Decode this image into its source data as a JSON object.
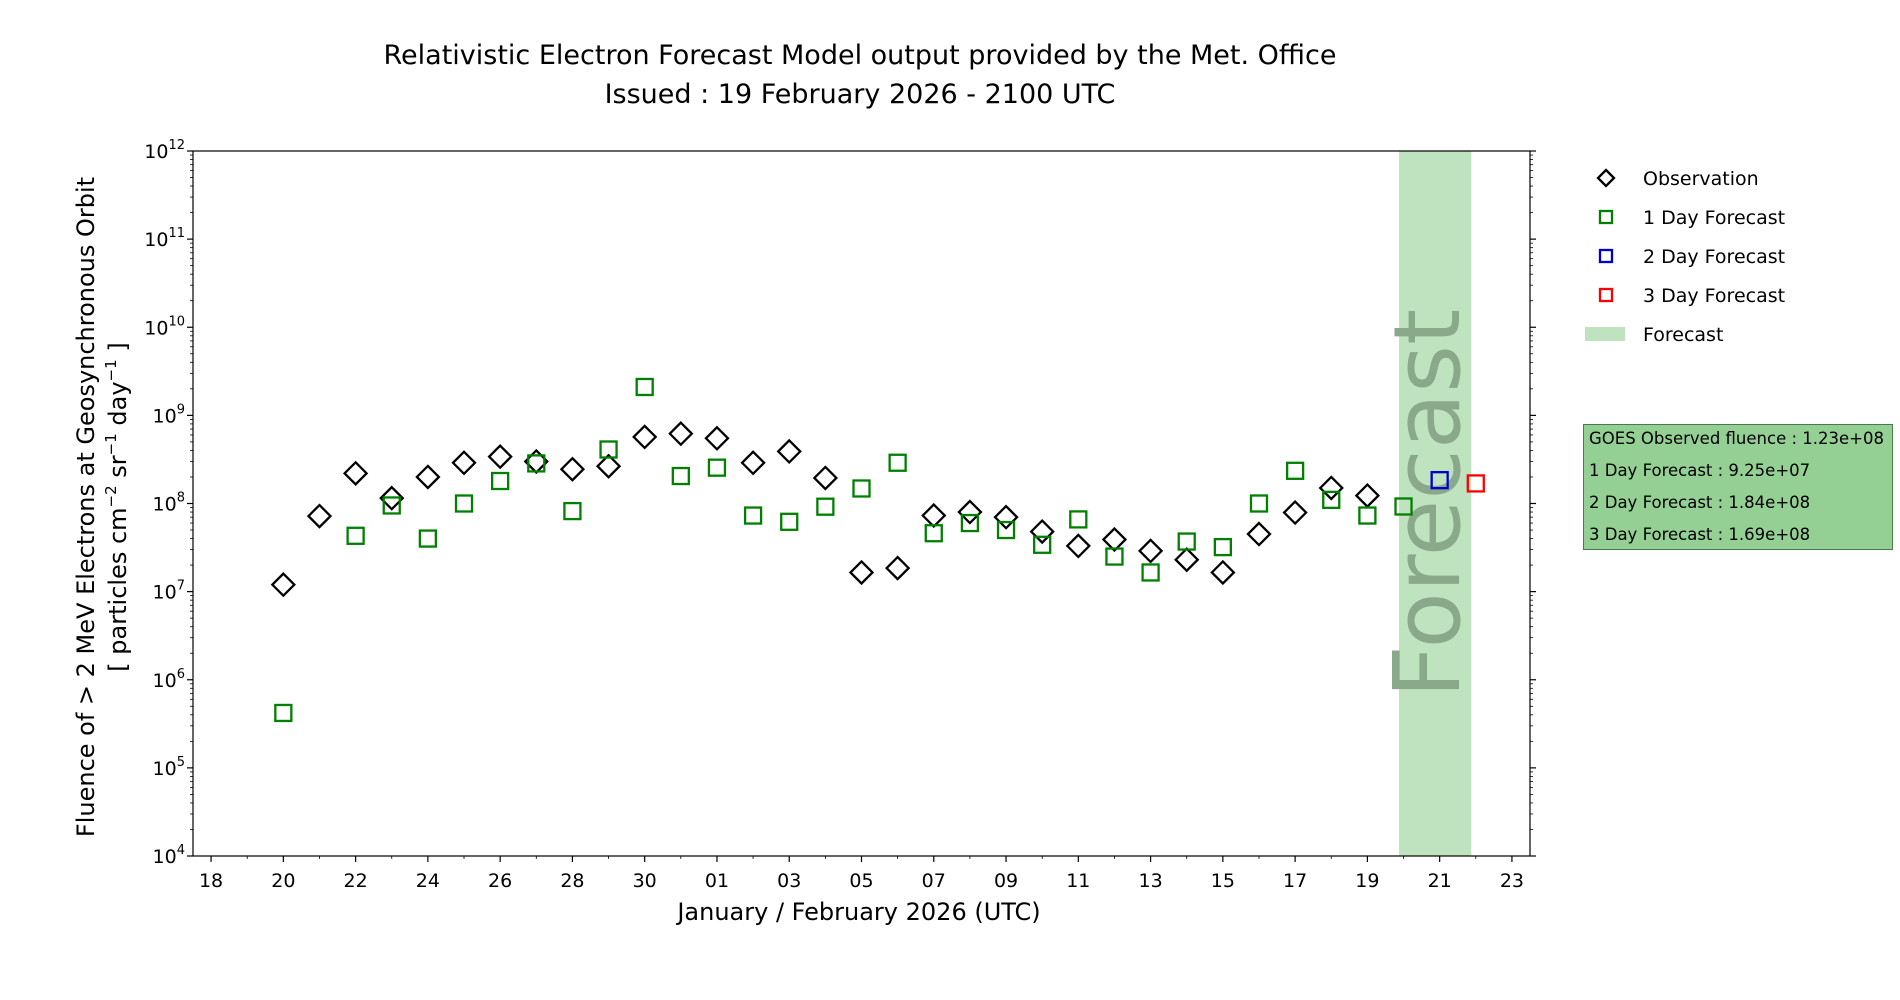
{
  "chart_data": {
    "type": "scatter",
    "title": "Relativistic Electron Forecast Model output provided by the Met. Office",
    "subtitle": "Issued : 19 February 2026 - 2100 UTC",
    "xlabel": "January / February 2026 (UTC)",
    "ylabel_line1": "Fluence of > 2 MeV Electrons at Geosynchronous Orbit",
    "ylabel_line2_parts": [
      "[ particles cm",
      "−2",
      " sr",
      "−1",
      " day",
      "−1",
      " ]"
    ],
    "yscale": "log",
    "ylim": [
      10000,
      1000000000000
    ],
    "xlim": [
      "2026-01-17T12:00",
      "2026-02-23T12:00"
    ],
    "y_ticks": [
      {
        "value": 10000,
        "base": "10",
        "exp": "4"
      },
      {
        "value": 100000,
        "base": "10",
        "exp": "5"
      },
      {
        "value": 1000000,
        "base": "10",
        "exp": "6"
      },
      {
        "value": 10000000,
        "base": "10",
        "exp": "7"
      },
      {
        "value": 100000000,
        "base": "10",
        "exp": "8"
      },
      {
        "value": 1000000000,
        "base": "10",
        "exp": "9"
      },
      {
        "value": 10000000000,
        "base": "10",
        "exp": "10"
      },
      {
        "value": 100000000000,
        "base": "10",
        "exp": "11"
      },
      {
        "value": 1000000000000,
        "base": "10",
        "exp": "12"
      }
    ],
    "x_ticks": [
      {
        "date": "2026-01-18",
        "label": "18"
      },
      {
        "date": "2026-01-20",
        "label": "20"
      },
      {
        "date": "2026-01-22",
        "label": "22"
      },
      {
        "date": "2026-01-24",
        "label": "24"
      },
      {
        "date": "2026-01-26",
        "label": "26"
      },
      {
        "date": "2026-01-28",
        "label": "28"
      },
      {
        "date": "2026-01-30",
        "label": "30"
      },
      {
        "date": "2026-02-01",
        "label": "01"
      },
      {
        "date": "2026-02-03",
        "label": "03"
      },
      {
        "date": "2026-02-05",
        "label": "05"
      },
      {
        "date": "2026-02-07",
        "label": "07"
      },
      {
        "date": "2026-02-09",
        "label": "09"
      },
      {
        "date": "2026-02-11",
        "label": "11"
      },
      {
        "date": "2026-02-13",
        "label": "13"
      },
      {
        "date": "2026-02-15",
        "label": "15"
      },
      {
        "date": "2026-02-17",
        "label": "17"
      },
      {
        "date": "2026-02-19",
        "label": "19"
      },
      {
        "date": "2026-02-21",
        "label": "21"
      },
      {
        "date": "2026-02-23",
        "label": "23"
      }
    ],
    "forecast_region": {
      "start": "2026-02-19T21:00",
      "end": "2026-02-21T21:00",
      "label": "Forecast",
      "color": "#bfe3bf",
      "text_color": "#8aa88a"
    },
    "series": [
      {
        "name": "Observation",
        "marker": "diamond",
        "color": "#000000",
        "points": [
          {
            "x": "2026-01-20",
            "y": 12000000
          },
          {
            "x": "2026-01-21",
            "y": 72000000
          },
          {
            "x": "2026-01-22",
            "y": 220000000
          },
          {
            "x": "2026-01-23",
            "y": 115000000
          },
          {
            "x": "2026-01-24",
            "y": 200000000
          },
          {
            "x": "2026-01-25",
            "y": 290000000
          },
          {
            "x": "2026-01-26",
            "y": 340000000
          },
          {
            "x": "2026-01-27",
            "y": 300000000
          },
          {
            "x": "2026-01-28",
            "y": 245000000
          },
          {
            "x": "2026-01-29",
            "y": 265000000
          },
          {
            "x": "2026-01-30",
            "y": 570000000
          },
          {
            "x": "2026-01-31",
            "y": 620000000
          },
          {
            "x": "2026-02-01",
            "y": 550000000
          },
          {
            "x": "2026-02-02",
            "y": 290000000
          },
          {
            "x": "2026-02-03",
            "y": 390000000
          },
          {
            "x": "2026-02-04",
            "y": 195000000
          },
          {
            "x": "2026-02-05",
            "y": 16500000
          },
          {
            "x": "2026-02-06",
            "y": 18500000
          },
          {
            "x": "2026-02-07",
            "y": 73000000
          },
          {
            "x": "2026-02-08",
            "y": 80000000
          },
          {
            "x": "2026-02-09",
            "y": 70000000
          },
          {
            "x": "2026-02-10",
            "y": 48000000
          },
          {
            "x": "2026-02-11",
            "y": 33000000
          },
          {
            "x": "2026-02-12",
            "y": 39000000
          },
          {
            "x": "2026-02-13",
            "y": 29000000
          },
          {
            "x": "2026-02-14",
            "y": 23000000
          },
          {
            "x": "2026-02-15",
            "y": 16500000
          },
          {
            "x": "2026-02-16",
            "y": 45000000
          },
          {
            "x": "2026-02-17",
            "y": 79000000
          },
          {
            "x": "2026-02-18",
            "y": 150000000
          },
          {
            "x": "2026-02-19",
            "y": 123000000
          }
        ]
      },
      {
        "name": "1 Day Forecast",
        "marker": "square",
        "color": "#008000",
        "points": [
          {
            "x": "2026-01-20",
            "y": 420000
          },
          {
            "x": "2026-01-22",
            "y": 43000000
          },
          {
            "x": "2026-01-23",
            "y": 95000000
          },
          {
            "x": "2026-01-24",
            "y": 40000000
          },
          {
            "x": "2026-01-25",
            "y": 100000000
          },
          {
            "x": "2026-01-26",
            "y": 180000000
          },
          {
            "x": "2026-01-27",
            "y": 285000000
          },
          {
            "x": "2026-01-28",
            "y": 82000000
          },
          {
            "x": "2026-01-29",
            "y": 410000000
          },
          {
            "x": "2026-01-30",
            "y": 2100000000
          },
          {
            "x": "2026-01-31",
            "y": 205000000
          },
          {
            "x": "2026-02-01",
            "y": 255000000
          },
          {
            "x": "2026-02-02",
            "y": 73000000
          },
          {
            "x": "2026-02-03",
            "y": 62000000
          },
          {
            "x": "2026-02-04",
            "y": 92000000
          },
          {
            "x": "2026-02-05",
            "y": 148000000
          },
          {
            "x": "2026-02-06",
            "y": 290000000
          },
          {
            "x": "2026-02-07",
            "y": 46000000
          },
          {
            "x": "2026-02-08",
            "y": 60000000
          },
          {
            "x": "2026-02-09",
            "y": 50000000
          },
          {
            "x": "2026-02-10",
            "y": 34000000
          },
          {
            "x": "2026-02-11",
            "y": 66000000
          },
          {
            "x": "2026-02-12",
            "y": 25000000
          },
          {
            "x": "2026-02-13",
            "y": 16500000
          },
          {
            "x": "2026-02-14",
            "y": 37000000
          },
          {
            "x": "2026-02-15",
            "y": 32000000
          },
          {
            "x": "2026-02-16",
            "y": 100000000
          },
          {
            "x": "2026-02-17",
            "y": 235000000
          },
          {
            "x": "2026-02-18",
            "y": 110000000
          },
          {
            "x": "2026-02-19",
            "y": 73000000
          },
          {
            "x": "2026-02-20",
            "y": 92500000
          }
        ]
      },
      {
        "name": "2 Day Forecast",
        "marker": "square",
        "color": "#0000cc",
        "points": [
          {
            "x": "2026-02-21",
            "y": 184000000
          }
        ]
      },
      {
        "name": "3 Day Forecast",
        "marker": "square",
        "color": "#ff0000",
        "points": [
          {
            "x": "2026-02-22",
            "y": 169000000
          }
        ]
      }
    ],
    "legend": {
      "placement": "right",
      "entries": [
        {
          "label": "Observation",
          "marker": "diamond",
          "color": "#000000"
        },
        {
          "label": "1 Day Forecast",
          "marker": "square",
          "color": "#008000"
        },
        {
          "label": "2 Day Forecast",
          "marker": "square",
          "color": "#0000cc"
        },
        {
          "label": "3 Day Forecast",
          "marker": "square",
          "color": "#ff0000"
        },
        {
          "label": "Forecast",
          "marker": "patch",
          "color": "#bfe3bf"
        }
      ]
    },
    "info_box": {
      "lines": [
        "GOES Observed fluence : 1.23e+08",
        "1 Day Forecast : 9.25e+07",
        "2 Day Forecast : 1.84e+08",
        "3 Day Forecast : 1.69e+08"
      ],
      "color": "#94cf94"
    }
  }
}
